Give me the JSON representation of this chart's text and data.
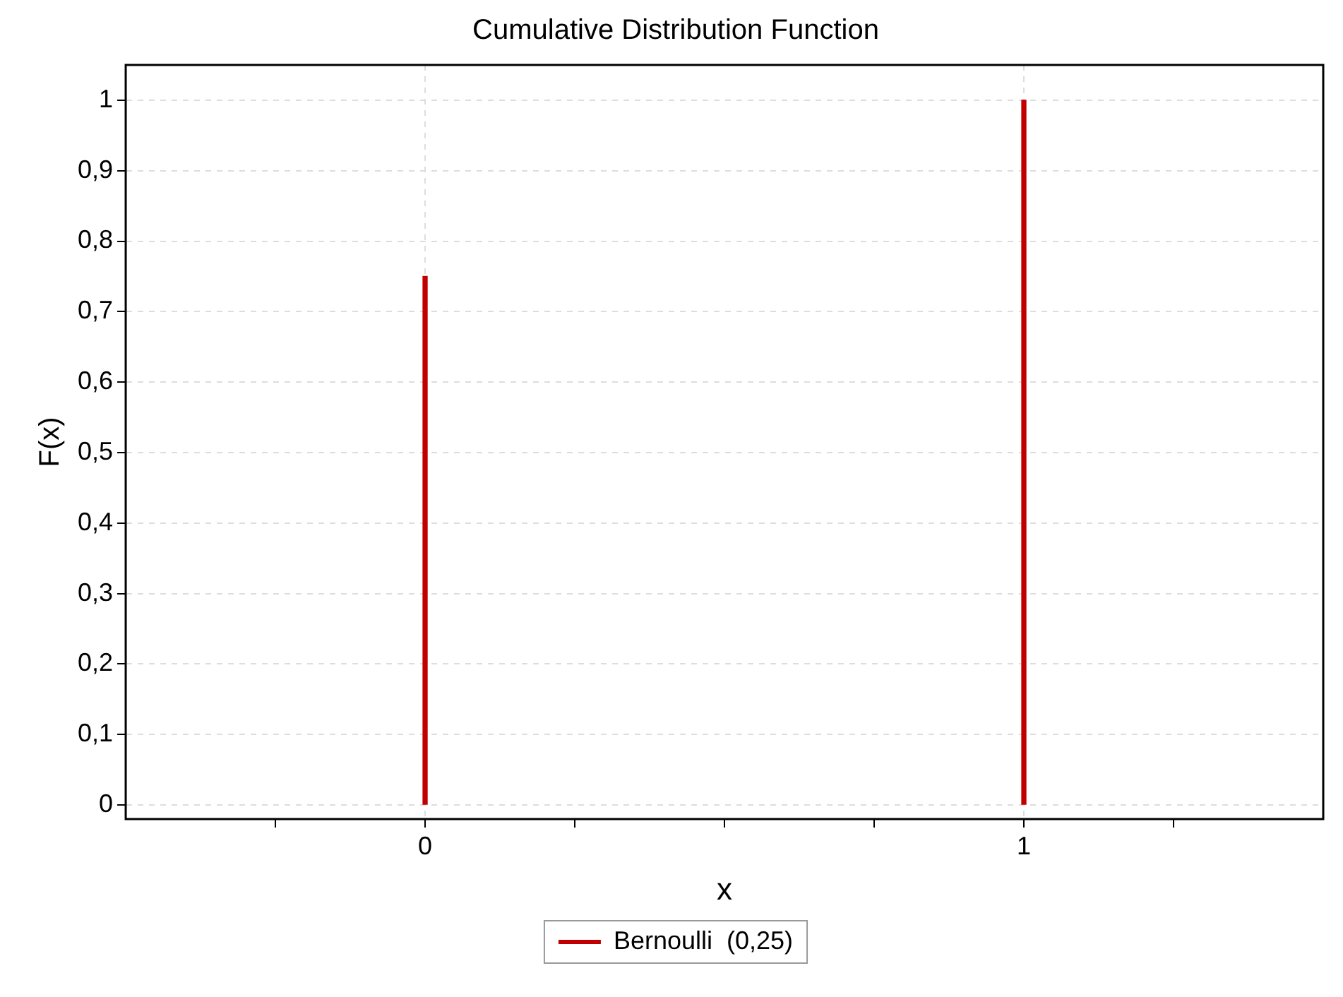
{
  "chart_data": {
    "type": "bar",
    "title": "Cumulative Distribution Function",
    "xlabel": "x",
    "ylabel": "F(x)",
    "x": [
      0,
      1
    ],
    "series": [
      {
        "name": "Bernoulli  (0,25)",
        "color": "#c00000",
        "values": [
          0.75,
          1
        ]
      }
    ],
    "xlim": [
      -0.5,
      1.5
    ],
    "xticks": [
      {
        "value": -0.25,
        "label": null
      },
      0,
      {
        "value": 0.25,
        "label": null
      },
      {
        "value": 0.5,
        "label": null
      },
      {
        "value": 0.75,
        "label": null
      },
      1,
      {
        "value": 1.25,
        "label": null
      }
    ],
    "ylim": [
      -0.02,
      1.05
    ],
    "yticks": [
      0,
      {
        "value": 0.1,
        "label": "0,1"
      },
      {
        "value": 0.2,
        "label": "0,2"
      },
      {
        "value": 0.3,
        "label": "0,3"
      },
      {
        "value": 0.4,
        "label": "0,4"
      },
      {
        "value": 0.5,
        "label": "0,5"
      },
      {
        "value": 0.6,
        "label": "0,6"
      },
      {
        "value": 0.7,
        "label": "0,7"
      },
      {
        "value": 0.8,
        "label": "0,8"
      },
      {
        "value": 0.9,
        "label": "0,9"
      },
      1
    ],
    "grid": true,
    "legend": "bottom"
  }
}
